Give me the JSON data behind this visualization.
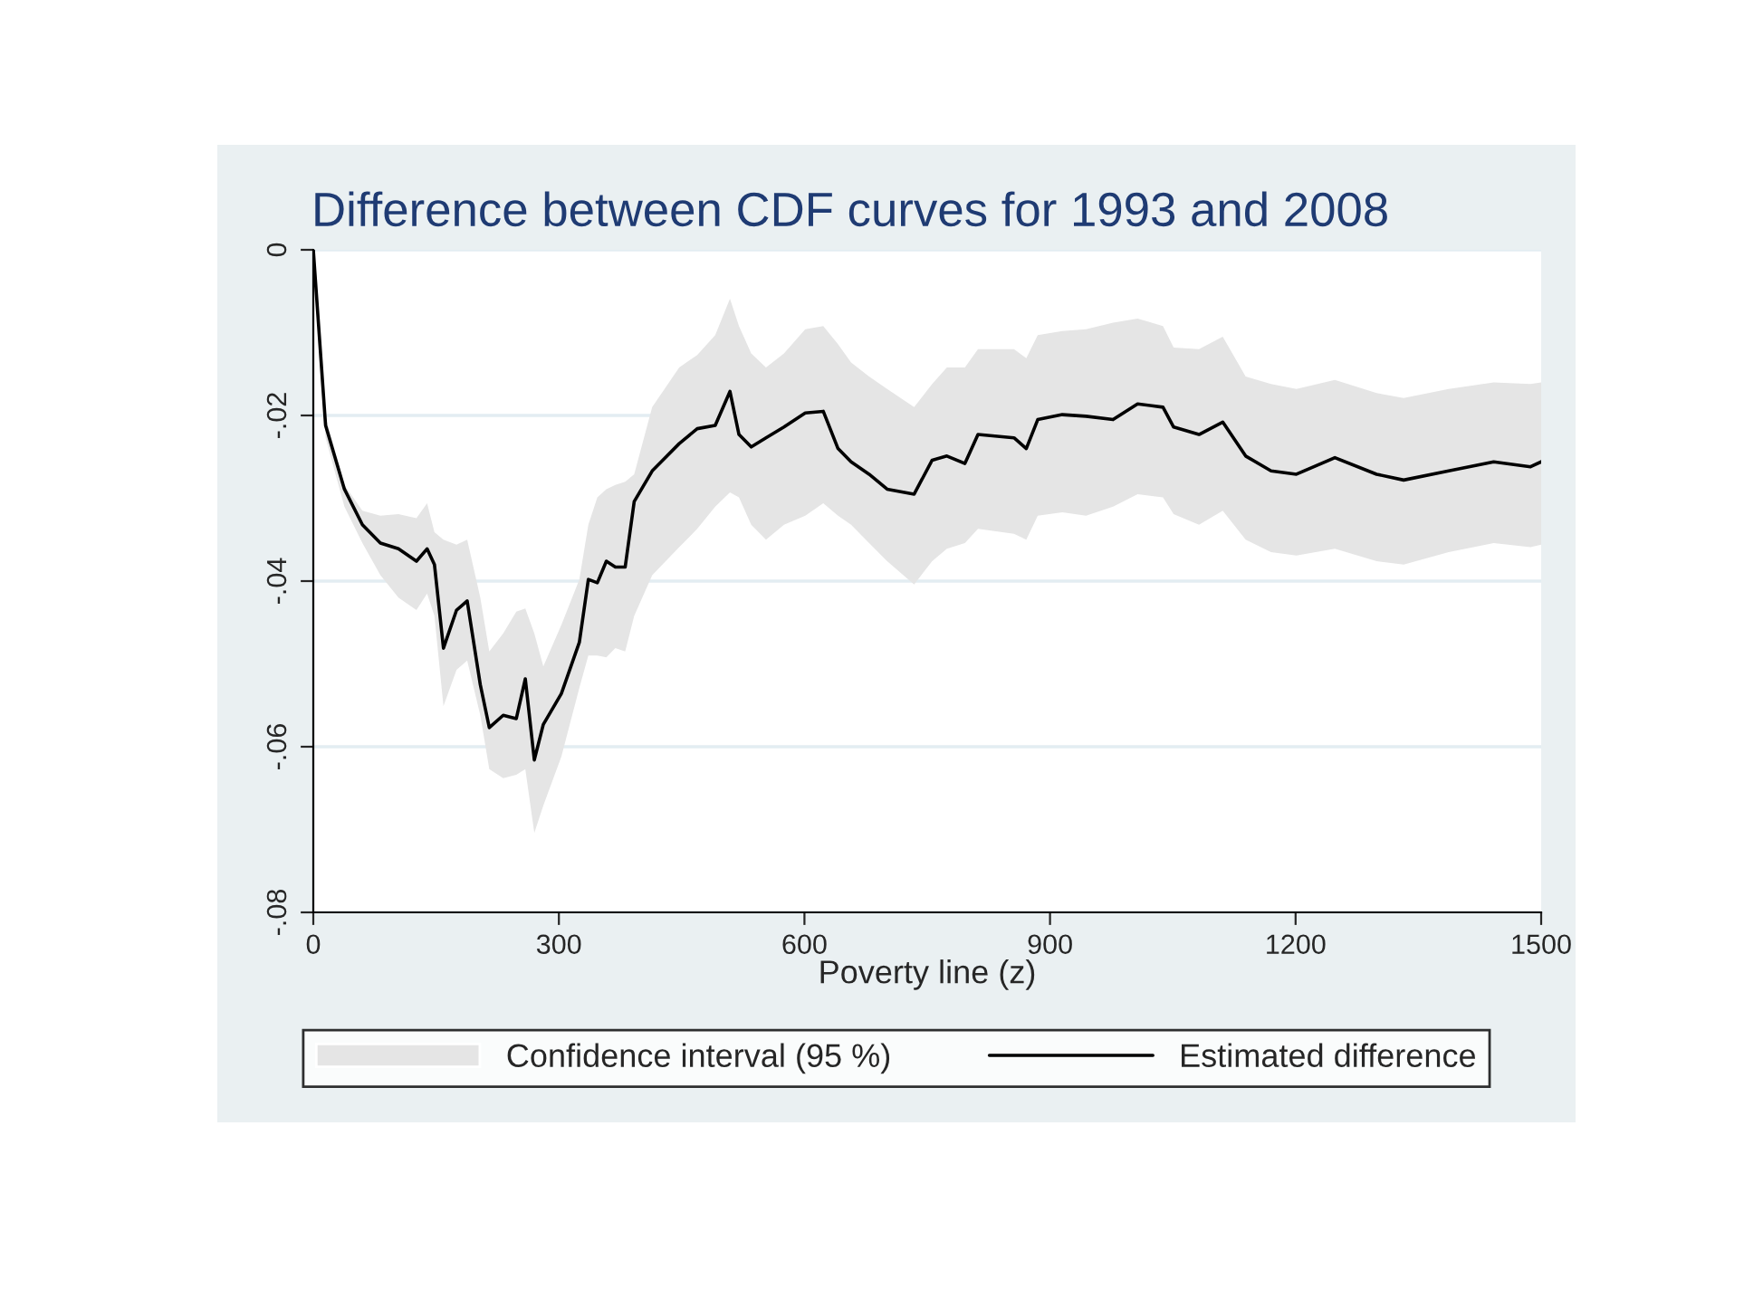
{
  "chart_data": {
    "type": "line",
    "title": "Difference between CDF curves for 1993 and 2008",
    "xlabel": "Poverty line (z)",
    "x": [
      0,
      15,
      38,
      60,
      82,
      104,
      126,
      139,
      148,
      159,
      175,
      188,
      204,
      215,
      232,
      248,
      259,
      270,
      281,
      303,
      325,
      336,
      347,
      358,
      369,
      381,
      392,
      414,
      447,
      469,
      491,
      509,
      520,
      535,
      553,
      575,
      601,
      623,
      641,
      657,
      679,
      701,
      734,
      756,
      774,
      796,
      812,
      856,
      871,
      885,
      915,
      944,
      977,
      1007,
      1038,
      1051,
      1082,
      1111,
      1139,
      1170,
      1201,
      1248,
      1299,
      1332,
      1387,
      1442,
      1487,
      1500
    ],
    "series": [
      {
        "name": "Estimated difference",
        "color": "#000000",
        "upper": [
          0,
          -0.0201,
          -0.0284,
          -0.0315,
          -0.0321,
          -0.0319,
          -0.0324,
          -0.0306,
          -0.0341,
          -0.035,
          -0.0356,
          -0.035,
          -0.042,
          -0.0485,
          -0.0463,
          -0.0437,
          -0.0433,
          -0.0463,
          -0.0503,
          -0.0453,
          -0.0398,
          -0.0332,
          -0.0299,
          -0.0289,
          -0.0284,
          -0.028,
          -0.0271,
          -0.019,
          -0.0142,
          -0.0127,
          -0.0103,
          -0.0059,
          -0.0092,
          -0.0125,
          -0.0142,
          -0.0125,
          -0.0096,
          -0.0092,
          -0.0114,
          -0.0136,
          -0.0153,
          -0.0168,
          -0.019,
          -0.0162,
          -0.0142,
          -0.0142,
          -0.012,
          -0.012,
          -0.0131,
          -0.0103,
          -0.0098,
          -0.0096,
          -0.0088,
          -0.0083,
          -0.0092,
          -0.0118,
          -0.012,
          -0.0105,
          -0.0153,
          -0.0162,
          -0.0168,
          -0.0157,
          -0.0173,
          -0.0179,
          -0.0168,
          -0.016,
          -0.0162,
          -0.016
        ],
        "lower": [
          0,
          -0.0227,
          -0.031,
          -0.0354,
          -0.0393,
          -0.042,
          -0.0435,
          -0.0415,
          -0.0442,
          -0.0551,
          -0.0507,
          -0.0496,
          -0.0562,
          -0.0627,
          -0.0638,
          -0.0634,
          -0.0627,
          -0.0704,
          -0.0671,
          -0.0612,
          -0.0529,
          -0.049,
          -0.049,
          -0.0492,
          -0.0481,
          -0.0485,
          -0.0442,
          -0.0393,
          -0.0359,
          -0.0337,
          -0.031,
          -0.0293,
          -0.0299,
          -0.0332,
          -0.035,
          -0.0332,
          -0.0321,
          -0.0306,
          -0.0321,
          -0.0332,
          -0.0354,
          -0.0376,
          -0.0404,
          -0.0376,
          -0.0361,
          -0.0354,
          -0.0337,
          -0.0343,
          -0.035,
          -0.0321,
          -0.0317,
          -0.0321,
          -0.031,
          -0.0295,
          -0.0299,
          -0.0319,
          -0.0332,
          -0.0315,
          -0.035,
          -0.0365,
          -0.0369,
          -0.0361,
          -0.0376,
          -0.038,
          -0.0365,
          -0.0354,
          -0.0359,
          -0.0356
        ],
        "values": [
          0,
          -0.0212,
          -0.0289,
          -0.0332,
          -0.0354,
          -0.0361,
          -0.0376,
          -0.0361,
          -0.038,
          -0.0481,
          -0.0435,
          -0.0424,
          -0.0525,
          -0.0577,
          -0.0562,
          -0.0566,
          -0.0518,
          -0.0616,
          -0.0573,
          -0.0536,
          -0.0474,
          -0.0398,
          -0.0402,
          -0.0376,
          -0.0383,
          -0.0383,
          -0.0304,
          -0.0267,
          -0.0234,
          -0.0216,
          -0.0212,
          -0.0171,
          -0.0223,
          -0.0238,
          -0.0227,
          -0.0214,
          -0.0197,
          -0.0195,
          -0.024,
          -0.0256,
          -0.0271,
          -0.0289,
          -0.0295,
          -0.0254,
          -0.0249,
          -0.0258,
          -0.0223,
          -0.0227,
          -0.024,
          -0.0205,
          -0.0199,
          -0.0201,
          -0.0205,
          -0.0186,
          -0.019,
          -0.0214,
          -0.0223,
          -0.0208,
          -0.0249,
          -0.0267,
          -0.0271,
          -0.0251,
          -0.0271,
          -0.0278,
          -0.0267,
          -0.0256,
          -0.0262,
          -0.0256
        ]
      }
    ],
    "xlim": [
      0,
      1500
    ],
    "xticks": [
      0,
      300,
      600,
      900,
      1200,
      1500
    ],
    "ylim": [
      -0.08,
      0
    ],
    "yticks": [
      {
        "value": -0.08,
        "label": "-.08"
      },
      {
        "value": -0.06,
        "label": "-.06"
      },
      {
        "value": -0.04,
        "label": "-.04"
      },
      {
        "value": -0.02,
        "label": "-.02"
      },
      0
    ],
    "annotations": [
      "Confidence interval (95 %)"
    ],
    "grid": "y",
    "legend": "bottom",
    "line_style": "solid"
  }
}
